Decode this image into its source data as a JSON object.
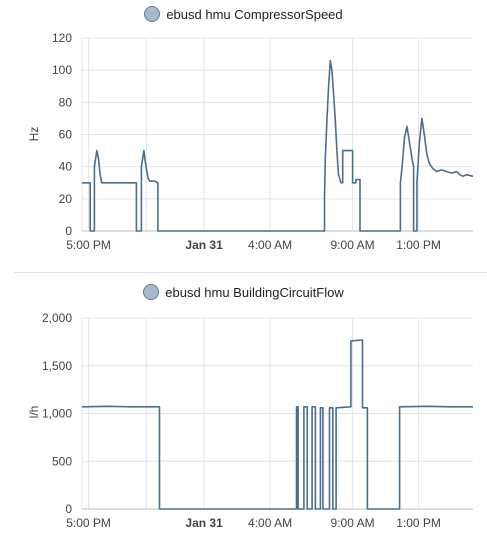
{
  "colors": {
    "series": "#4a6e8f",
    "grid": "#e4e4e4",
    "axis": "#bdbdbd",
    "legend_dot": "#a6b9cc"
  },
  "chart_data": [
    {
      "type": "line",
      "legend": "ebusd hmu CompressorSpeed",
      "ylabel": "Hz",
      "y_ticks": [
        "0",
        "20",
        "40",
        "60",
        "80",
        "100",
        "120"
      ],
      "ylim": [
        0,
        120
      ],
      "x_ticks": [
        {
          "label": "5:00 PM",
          "x": 0,
          "bold": false
        },
        {
          "label": "Jan 31",
          "x": 7,
          "bold": true
        },
        {
          "label": "4:00 AM",
          "x": 11,
          "bold": false
        },
        {
          "label": "9:00 AM",
          "x": 16,
          "bold": false
        },
        {
          "label": "1:00 PM",
          "x": 20,
          "bold": false
        }
      ],
      "x_grid": [
        0,
        3.5,
        7,
        11,
        16,
        20
      ],
      "xlim": [
        -0.4,
        23.3
      ],
      "grid": true,
      "legend_position": "top-center",
      "x_unit": "hours since 5:00 PM",
      "points": [
        [
          -0.4,
          30
        ],
        [
          0.1,
          30
        ],
        [
          0.1,
          0
        ],
        [
          0.35,
          0
        ],
        [
          0.35,
          40
        ],
        [
          0.5,
          50
        ],
        [
          0.6,
          45
        ],
        [
          0.7,
          35
        ],
        [
          0.8,
          30
        ],
        [
          2.9,
          30
        ],
        [
          2.9,
          0
        ],
        [
          3.2,
          0
        ],
        [
          3.2,
          40
        ],
        [
          3.35,
          50
        ],
        [
          3.45,
          42
        ],
        [
          3.6,
          33
        ],
        [
          3.7,
          31
        ],
        [
          4.0,
          31
        ],
        [
          4.2,
          30
        ],
        [
          4.2,
          0
        ],
        [
          14.3,
          0
        ],
        [
          14.3,
          20
        ],
        [
          14.35,
          45
        ],
        [
          14.45,
          70
        ],
        [
          14.55,
          90
        ],
        [
          14.65,
          106
        ],
        [
          14.75,
          100
        ],
        [
          14.85,
          85
        ],
        [
          14.95,
          70
        ],
        [
          15.05,
          50
        ],
        [
          15.15,
          35
        ],
        [
          15.3,
          30
        ],
        [
          15.4,
          30
        ],
        [
          15.4,
          50
        ],
        [
          16.0,
          50
        ],
        [
          16.0,
          30
        ],
        [
          16.2,
          30
        ],
        [
          16.2,
          32
        ],
        [
          16.45,
          32
        ],
        [
          16.45,
          0
        ],
        [
          18.9,
          0
        ],
        [
          18.9,
          30
        ],
        [
          19.0,
          40
        ],
        [
          19.15,
          58
        ],
        [
          19.3,
          65
        ],
        [
          19.45,
          55
        ],
        [
          19.6,
          45
        ],
        [
          19.7,
          40
        ],
        [
          19.7,
          0
        ],
        [
          19.9,
          0
        ],
        [
          19.9,
          30
        ],
        [
          20.05,
          55
        ],
        [
          20.2,
          70
        ],
        [
          20.35,
          60
        ],
        [
          20.5,
          48
        ],
        [
          20.65,
          42
        ],
        [
          20.85,
          39
        ],
        [
          21.1,
          37
        ],
        [
          21.4,
          38
        ],
        [
          21.7,
          37
        ],
        [
          22.0,
          36
        ],
        [
          22.3,
          37
        ],
        [
          22.5,
          35
        ],
        [
          22.7,
          34
        ],
        [
          22.9,
          35
        ],
        [
          23.3,
          34
        ]
      ]
    },
    {
      "type": "line",
      "legend": "ebusd hmu BuildingCircuitFlow",
      "ylabel": "l/h",
      "y_ticks": [
        "0",
        "500",
        "1,000",
        "1,500",
        "2,000"
      ],
      "ylim": [
        0,
        2000
      ],
      "x_ticks": [
        {
          "label": "5:00 PM",
          "x": 0,
          "bold": false
        },
        {
          "label": "Jan 31",
          "x": 7,
          "bold": true
        },
        {
          "label": "4:00 AM",
          "x": 11,
          "bold": false
        },
        {
          "label": "9:00 AM",
          "x": 16,
          "bold": false
        },
        {
          "label": "1:00 PM",
          "x": 20,
          "bold": false
        }
      ],
      "x_grid": [
        0,
        3.5,
        7,
        11,
        16,
        20
      ],
      "xlim": [
        -0.4,
        23.3
      ],
      "grid": true,
      "legend_position": "top-center",
      "x_unit": "hours since 5:00 PM",
      "points": [
        [
          -0.4,
          1070
        ],
        [
          1.2,
          1075
        ],
        [
          2.5,
          1070
        ],
        [
          4.3,
          1070
        ],
        [
          4.3,
          0
        ],
        [
          12.6,
          0
        ],
        [
          12.6,
          1070
        ],
        [
          12.7,
          1070
        ],
        [
          12.7,
          0
        ],
        [
          13.05,
          0
        ],
        [
          13.05,
          1070
        ],
        [
          13.25,
          1070
        ],
        [
          13.25,
          0
        ],
        [
          13.55,
          0
        ],
        [
          13.55,
          1070
        ],
        [
          13.75,
          1070
        ],
        [
          13.75,
          0
        ],
        [
          14.05,
          0
        ],
        [
          14.05,
          1060
        ],
        [
          14.2,
          1060
        ],
        [
          14.2,
          0
        ],
        [
          14.6,
          0
        ],
        [
          14.6,
          1060
        ],
        [
          14.8,
          1060
        ],
        [
          14.8,
          0
        ],
        [
          15.0,
          0
        ],
        [
          15.0,
          1060
        ],
        [
          15.9,
          1070
        ],
        [
          15.9,
          1760
        ],
        [
          16.6,
          1770
        ],
        [
          16.6,
          1060
        ],
        [
          16.9,
          1060
        ],
        [
          16.9,
          0
        ],
        [
          18.85,
          0
        ],
        [
          18.85,
          1070
        ],
        [
          20.5,
          1075
        ],
        [
          22.0,
          1070
        ],
        [
          23.3,
          1070
        ]
      ]
    }
  ]
}
